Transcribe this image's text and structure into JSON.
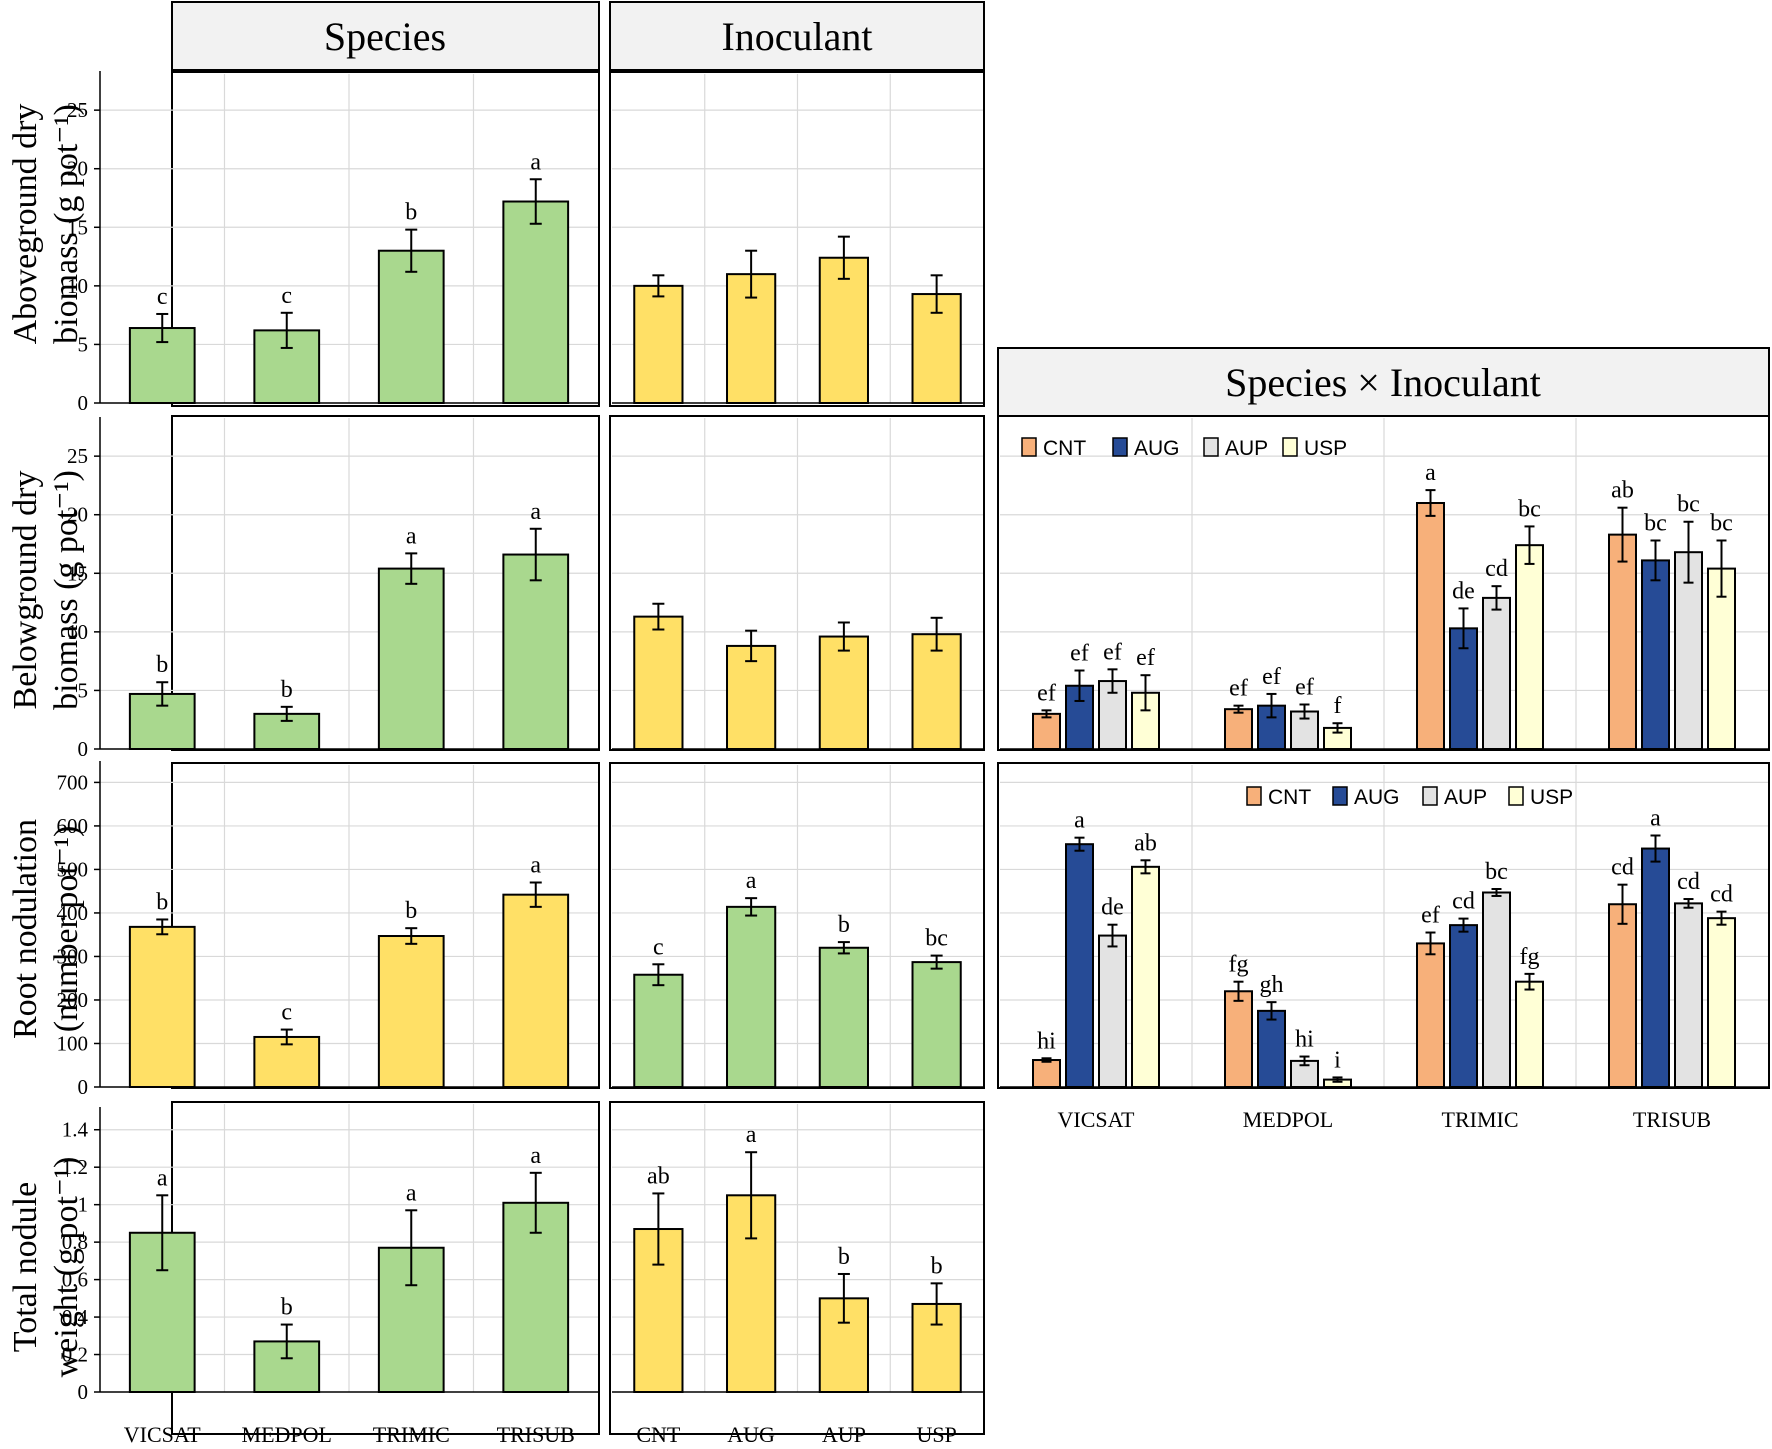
{
  "headers": {
    "species": "Species",
    "inoculant": "Inoculant",
    "interaction": "Species × Inoculant"
  },
  "colors": {
    "species_bar": "#a9d88e",
    "inoculant_bar": "#ffe066",
    "CNT": "#f7b07a",
    "AUG": "#264b96",
    "AUP": "#e3e3e3",
    "USP": "#ffffd6",
    "grid": "#d9d9d9"
  },
  "chart_data": [
    {
      "id": "above_species",
      "type": "bar",
      "title": "Species",
      "ylabel": [
        "Aboveground dry",
        "biomass  (g pot⁻¹)"
      ],
      "categories": [
        "VICSAT",
        "MEDPOL",
        "TRIMIC",
        "TRISUB"
      ],
      "values": [
        6.4,
        6.2,
        13.0,
        17.2
      ],
      "errors": [
        1.2,
        1.5,
        1.8,
        1.9
      ],
      "letters": [
        "c",
        "c",
        "b",
        "a"
      ],
      "ylim": [
        0,
        28
      ],
      "yticks": [
        0,
        5,
        10,
        15,
        20,
        25
      ],
      "ytick_labels": [
        "0",
        "5",
        "10",
        "15",
        "20",
        "25"
      ]
    },
    {
      "id": "above_inoculant",
      "type": "bar",
      "title": "Inoculant",
      "categories": [
        "CNT",
        "AUG",
        "AUP",
        "USP"
      ],
      "values": [
        10.0,
        11.0,
        12.4,
        9.3
      ],
      "errors": [
        0.9,
        2.0,
        1.8,
        1.6
      ],
      "letters": [
        "",
        "",
        "",
        ""
      ],
      "ylim": [
        0,
        28
      ]
    },
    {
      "id": "below_species",
      "type": "bar",
      "ylabel": [
        "Belowground dry",
        "biomass  (g pot⁻¹)"
      ],
      "categories": [
        "VICSAT",
        "MEDPOL",
        "TRIMIC",
        "TRISUB"
      ],
      "values": [
        4.7,
        3.0,
        15.4,
        16.6
      ],
      "errors": [
        1.0,
        0.6,
        1.3,
        2.2
      ],
      "letters": [
        "b",
        "b",
        "a",
        "a"
      ],
      "ylim": [
        0,
        28
      ],
      "yticks": [
        0,
        5,
        10,
        15,
        20,
        25
      ],
      "ytick_labels": [
        "0",
        "5",
        "10",
        "15",
        "20",
        "25"
      ]
    },
    {
      "id": "below_inoculant",
      "type": "bar",
      "categories": [
        "CNT",
        "AUG",
        "AUP",
        "USP"
      ],
      "values": [
        11.3,
        8.8,
        9.6,
        9.8
      ],
      "errors": [
        1.1,
        1.3,
        1.2,
        1.4
      ],
      "letters": [
        "",
        "",
        "",
        ""
      ],
      "ylim": [
        0,
        28
      ]
    },
    {
      "id": "below_interaction",
      "type": "grouped-bar",
      "title": "Species × Inoculant",
      "groups": [
        "VICSAT",
        "MEDPOL",
        "TRIMIC",
        "TRISUB"
      ],
      "legend": [
        "CNT",
        "AUG",
        "AUP",
        "USP"
      ],
      "series": [
        {
          "name": "CNT",
          "values": [
            3.0,
            3.4,
            21.0,
            18.3
          ],
          "errors": [
            0.3,
            0.3,
            1.1,
            2.3
          ],
          "letters": [
            "ef",
            "ef",
            "a",
            "ab"
          ]
        },
        {
          "name": "AUG",
          "values": [
            5.4,
            3.7,
            10.3,
            16.1
          ],
          "errors": [
            1.3,
            1.0,
            1.7,
            1.7
          ],
          "letters": [
            "ef",
            "ef",
            "de",
            "bc"
          ]
        },
        {
          "name": "AUP",
          "values": [
            5.8,
            3.2,
            12.9,
            16.8
          ],
          "errors": [
            1.0,
            0.6,
            1.0,
            2.6
          ],
          "letters": [
            "ef",
            "ef",
            "cd",
            "bc"
          ]
        },
        {
          "name": "USP",
          "values": [
            4.8,
            1.8,
            17.4,
            15.4
          ],
          "errors": [
            1.5,
            0.4,
            1.6,
            2.4
          ],
          "letters": [
            "ef",
            "f",
            "bc",
            "bc"
          ]
        }
      ],
      "ylim": [
        0,
        28
      ]
    },
    {
      "id": "nod_species",
      "type": "bar",
      "ylabel": [
        "Root nodulation",
        "(number pot⁻¹)"
      ],
      "categories": [
        "VICSAT",
        "MEDPOL",
        "TRIMIC",
        "TRISUB"
      ],
      "values": [
        368,
        115,
        347,
        442
      ],
      "errors": [
        17,
        17,
        18,
        28
      ],
      "letters": [
        "b",
        "c",
        "b",
        "a"
      ],
      "ylim": [
        0,
        740
      ],
      "yticks": [
        0,
        100,
        200,
        300,
        400,
        500,
        600,
        700
      ],
      "ytick_labels": [
        "0",
        "100",
        "200",
        "300",
        "400",
        "500",
        "600",
        "700"
      ]
    },
    {
      "id": "nod_inoculant",
      "type": "bar",
      "categories": [
        "CNT",
        "AUG",
        "AUP",
        "USP"
      ],
      "values": [
        258,
        414,
        320,
        287
      ],
      "errors": [
        24,
        20,
        13,
        15
      ],
      "letters": [
        "c",
        "a",
        "b",
        "bc"
      ],
      "ylim": [
        0,
        740
      ]
    },
    {
      "id": "nod_interaction",
      "type": "grouped-bar",
      "groups": [
        "VICSAT",
        "MEDPOL",
        "TRIMIC",
        "TRISUB"
      ],
      "legend": [
        "CNT",
        "AUG",
        "AUP",
        "USP"
      ],
      "series": [
        {
          "name": "CNT",
          "values": [
            62,
            220,
            330,
            420
          ],
          "errors": [
            4,
            22,
            25,
            45
          ],
          "letters": [
            "hi",
            "fg",
            "ef",
            "cd"
          ]
        },
        {
          "name": "AUG",
          "values": [
            558,
            175,
            372,
            548
          ],
          "errors": [
            15,
            20,
            15,
            30
          ],
          "letters": [
            "a",
            "gh",
            "cd",
            "a"
          ]
        },
        {
          "name": "AUP",
          "values": [
            348,
            60,
            447,
            422
          ],
          "errors": [
            25,
            10,
            8,
            10
          ],
          "letters": [
            "de",
            "hi",
            "bc",
            "cd"
          ]
        },
        {
          "name": "USP",
          "values": [
            506,
            17,
            242,
            388
          ],
          "errors": [
            15,
            5,
            18,
            15
          ],
          "letters": [
            "ab",
            "i",
            "fg",
            "cd"
          ]
        }
      ],
      "ylim": [
        0,
        740
      ]
    },
    {
      "id": "weight_species",
      "type": "bar",
      "ylabel": [
        "Total nodule",
        "weight (g pot⁻¹)"
      ],
      "categories": [
        "VICSAT",
        "MEDPOL",
        "TRIMIC",
        "TRISUB"
      ],
      "values": [
        0.85,
        0.27,
        0.77,
        1.01
      ],
      "errors": [
        0.2,
        0.09,
        0.2,
        0.16
      ],
      "letters": [
        "a",
        "b",
        "a",
        "a"
      ],
      "ylim": [
        0,
        1.5
      ],
      "yticks": [
        0,
        0.2,
        0.4,
        0.6,
        0.8,
        1.0,
        1.2,
        1.4
      ],
      "ytick_labels": [
        "0",
        "0.2",
        "0.4",
        "0.6",
        "0.8",
        "1",
        "1.2",
        "1.4"
      ]
    },
    {
      "id": "weight_inoculant",
      "type": "bar",
      "categories": [
        "CNT",
        "AUG",
        "AUP",
        "USP"
      ],
      "values": [
        0.87,
        1.05,
        0.5,
        0.47
      ],
      "errors": [
        0.19,
        0.23,
        0.13,
        0.11
      ],
      "letters": [
        "ab",
        "a",
        "b",
        "b"
      ],
      "ylim": [
        0,
        1.5
      ]
    }
  ]
}
